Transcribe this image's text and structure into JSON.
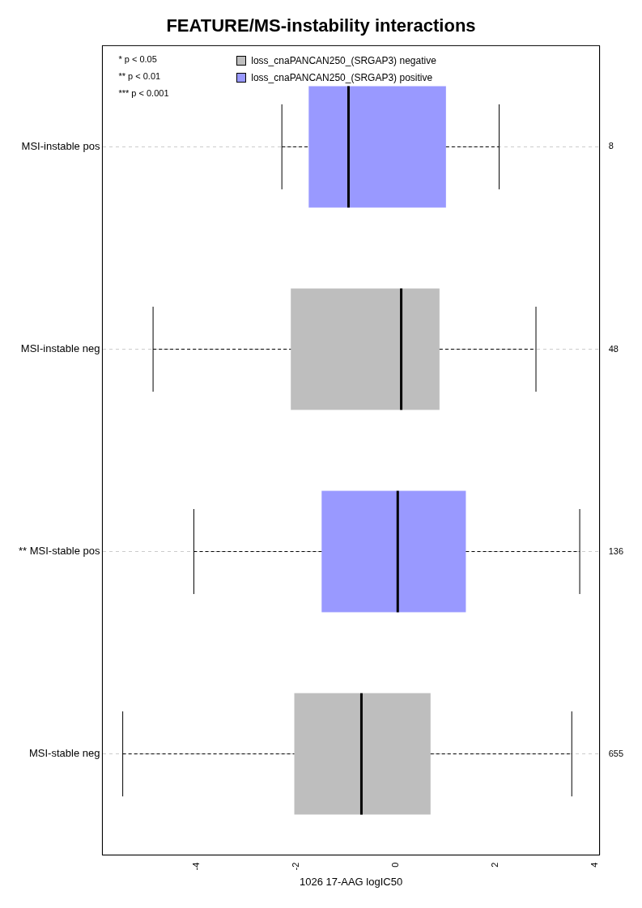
{
  "chart_data": {
    "type": "box",
    "orientation": "horizontal",
    "title": "FEATURE/MS-instability interactions",
    "xlabel": "1026 17-AAG logIC50",
    "categories": [
      "MSI-instable pos",
      "MSI-instable neg",
      "** MSI-stable pos",
      "MSI-stable neg"
    ],
    "y2_categories": [
      "8",
      "48",
      "136",
      "655"
    ],
    "series": [
      {
        "name": "loss_cnaPANCAN250_(SRGAP3) negative",
        "color": "#bebebe",
        "boxes": [
          null,
          {
            "low": -4.88,
            "q1": -2.11,
            "median": 0.11,
            "q3": 0.88,
            "high": 2.82
          },
          null,
          {
            "low": -5.49,
            "q1": -2.04,
            "median": -0.69,
            "q3": 0.7,
            "high": 3.54
          }
        ]
      },
      {
        "name": "loss_cnaPANCAN250_(SRGAP3) positive",
        "color": "#9999ff",
        "boxes": [
          {
            "low": -2.29,
            "q1": -1.75,
            "median": -0.95,
            "q3": 1.01,
            "high": 2.08
          },
          null,
          {
            "low": -4.06,
            "q1": -1.49,
            "median": 0.04,
            "q3": 1.41,
            "high": 3.7
          },
          null
        ]
      }
    ],
    "xlim": [
      -5.9,
      4.1
    ],
    "xticks": [
      -4,
      -2,
      0,
      2,
      4
    ],
    "grid": "y",
    "legend": "top",
    "annotations": [
      "* p < 0.05",
      "** p < 0.01",
      "*** p < 0.001"
    ]
  }
}
